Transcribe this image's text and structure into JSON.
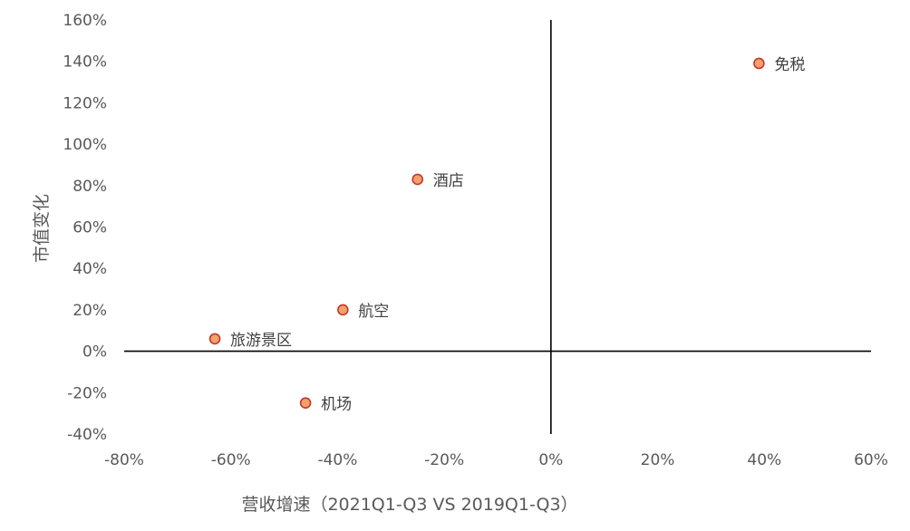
{
  "chart_data": {
    "type": "scatter",
    "xlabel": "营收增速（2021Q1-Q3 VS 2019Q1-Q3）",
    "ylabel": "市值变化",
    "xlim": [
      -80,
      60
    ],
    "ylim": [
      -40,
      160
    ],
    "x_ticks": [
      -80,
      -60,
      -40,
      -20,
      0,
      20,
      40,
      60
    ],
    "y_ticks": [
      -40,
      -20,
      0,
      20,
      40,
      60,
      80,
      100,
      120,
      140,
      160
    ],
    "tick_suffix": "%",
    "grid": false,
    "points": [
      {
        "label": "免税",
        "x": 39,
        "y": 139
      },
      {
        "label": "酒店",
        "x": -25,
        "y": 83
      },
      {
        "label": "航空",
        "x": -39,
        "y": 20
      },
      {
        "label": "旅游景区",
        "x": -63,
        "y": 6
      },
      {
        "label": "机场",
        "x": -46,
        "y": -25
      }
    ],
    "colors": {
      "marker_fill": "#F4A06A",
      "marker_edge": "#C0392B",
      "axis": "#000000",
      "text": "#595959"
    }
  }
}
